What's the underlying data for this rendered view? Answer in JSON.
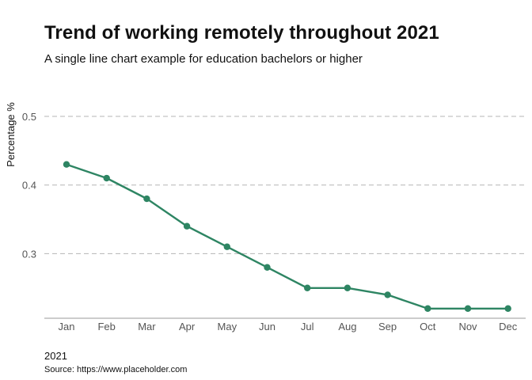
{
  "header": {
    "title": "Trend of working remotely throughout 2021",
    "subtitle": "A single line chart example for education bachelors or higher"
  },
  "footer": {
    "year": "2021",
    "source": "Source: https://www.placeholder.com"
  },
  "colors": {
    "series": "#2e8563",
    "grid": "#b5b5b5",
    "axis": "#999999",
    "tick_text": "#555555"
  },
  "chart_data": {
    "type": "line",
    "title": "Trend of working remotely throughout 2021",
    "subtitle": "A single line chart example for education bachelors or higher",
    "xlabel": "",
    "ylabel": "Percentage %",
    "categories": [
      "Jan",
      "Feb",
      "Mar",
      "Apr",
      "May",
      "Jun",
      "Jul",
      "Aug",
      "Sep",
      "Oct",
      "Nov",
      "Dec"
    ],
    "series": [
      {
        "values": [
          0.43,
          0.41,
          0.38,
          0.34,
          0.31,
          0.28,
          0.25,
          0.25,
          0.24,
          0.22,
          0.22,
          0.22
        ]
      }
    ],
    "yticks": [
      "0.3",
      "0.4",
      "0.5"
    ],
    "ylim": [
      0.21,
      0.51
    ],
    "grid": "horizontal dashed",
    "legend": "none"
  }
}
